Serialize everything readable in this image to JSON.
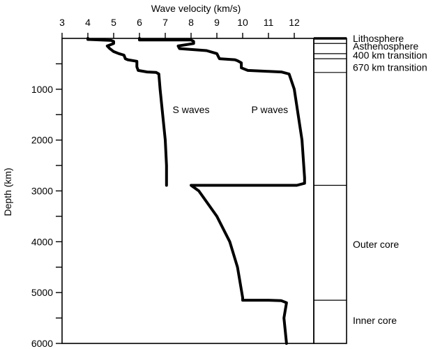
{
  "chart_data": {
    "type": "line",
    "title": "",
    "xlabel": "Wave velocity (km/s)",
    "ylabel": "Depth (km)",
    "xlim": [
      3,
      12.4
    ],
    "ylim": [
      0,
      6000
    ],
    "y_inverted": true,
    "x_axis_position": "top",
    "x_ticks": [
      3,
      4,
      5,
      6,
      7,
      8,
      9,
      10,
      11,
      12
    ],
    "y_ticks": [
      1000,
      2000,
      3000,
      4000,
      5000,
      6000
    ],
    "grid": false,
    "series": [
      {
        "name": "S waves",
        "color": "#000000",
        "points": [
          [
            4.0,
            0
          ],
          [
            4.0,
            20
          ],
          [
            4.9,
            40
          ],
          [
            5.0,
            60
          ],
          [
            5.0,
            100
          ],
          [
            4.75,
            150
          ],
          [
            4.85,
            200
          ],
          [
            5.0,
            260
          ],
          [
            5.2,
            300
          ],
          [
            5.4,
            330
          ],
          [
            5.45,
            400
          ],
          [
            5.55,
            420
          ],
          [
            5.9,
            450
          ],
          [
            5.9,
            560
          ],
          [
            5.95,
            630
          ],
          [
            6.3,
            660
          ],
          [
            6.65,
            670
          ],
          [
            6.75,
            700
          ],
          [
            6.8,
            1000
          ],
          [
            6.9,
            1500
          ],
          [
            7.0,
            2000
          ],
          [
            7.05,
            2500
          ],
          [
            7.05,
            2890
          ]
        ]
      },
      {
        "name": "P waves",
        "color": "#000000",
        "points": [
          [
            6.0,
            0
          ],
          [
            6.0,
            30
          ],
          [
            8.0,
            30
          ],
          [
            8.1,
            60
          ],
          [
            8.1,
            100
          ],
          [
            7.5,
            150
          ],
          [
            7.55,
            200
          ],
          [
            8.6,
            240
          ],
          [
            9.0,
            300
          ],
          [
            9.1,
            400
          ],
          [
            9.7,
            420
          ],
          [
            9.8,
            440
          ],
          [
            9.95,
            480
          ],
          [
            9.95,
            580
          ],
          [
            10.2,
            630
          ],
          [
            11.0,
            650
          ],
          [
            11.5,
            660
          ],
          [
            11.8,
            700
          ],
          [
            12.0,
            1000
          ],
          [
            12.3,
            2000
          ],
          [
            12.4,
            2740
          ],
          [
            12.4,
            2850
          ],
          [
            12.1,
            2890
          ],
          [
            8.0,
            2890
          ],
          [
            8.3,
            3000
          ],
          [
            9.0,
            3500
          ],
          [
            9.5,
            4000
          ],
          [
            9.8,
            4500
          ],
          [
            10.0,
            5100
          ],
          [
            10.0,
            5150
          ],
          [
            11.0,
            5150
          ],
          [
            11.5,
            5160
          ],
          [
            11.7,
            5200
          ],
          [
            11.6,
            5500
          ],
          [
            11.7,
            6000
          ]
        ]
      }
    ],
    "series_labels": [
      {
        "text": "S waves",
        "x": 8.0,
        "y": 1400
      },
      {
        "text": "P waves",
        "x": 11.05,
        "y": 1400
      }
    ],
    "layers": [
      {
        "name": "Lithosphere",
        "depth": 0
      },
      {
        "name": "Asthenosphere",
        "depth": 100
      },
      {
        "name": "400 km transition",
        "depth": 400
      },
      {
        "name": "670 km transition",
        "depth": 670
      },
      {
        "name": "Outer core",
        "depth": 2890
      },
      {
        "name": "Inner core",
        "depth": 5150
      }
    ],
    "layer_boundaries": [
      100,
      300,
      400,
      670,
      2890,
      5150
    ],
    "layer_labels": [
      {
        "text": "Lithosphere",
        "depth": 0
      },
      {
        "text": "Asthenosphere",
        "depth": 150
      },
      {
        "text": "400 km transition",
        "depth": 330
      },
      {
        "text": "670 km transition",
        "depth": 570
      },
      {
        "text": "Outer core",
        "depth": 4050
      },
      {
        "text": "Inner core",
        "depth": 5550
      }
    ]
  }
}
